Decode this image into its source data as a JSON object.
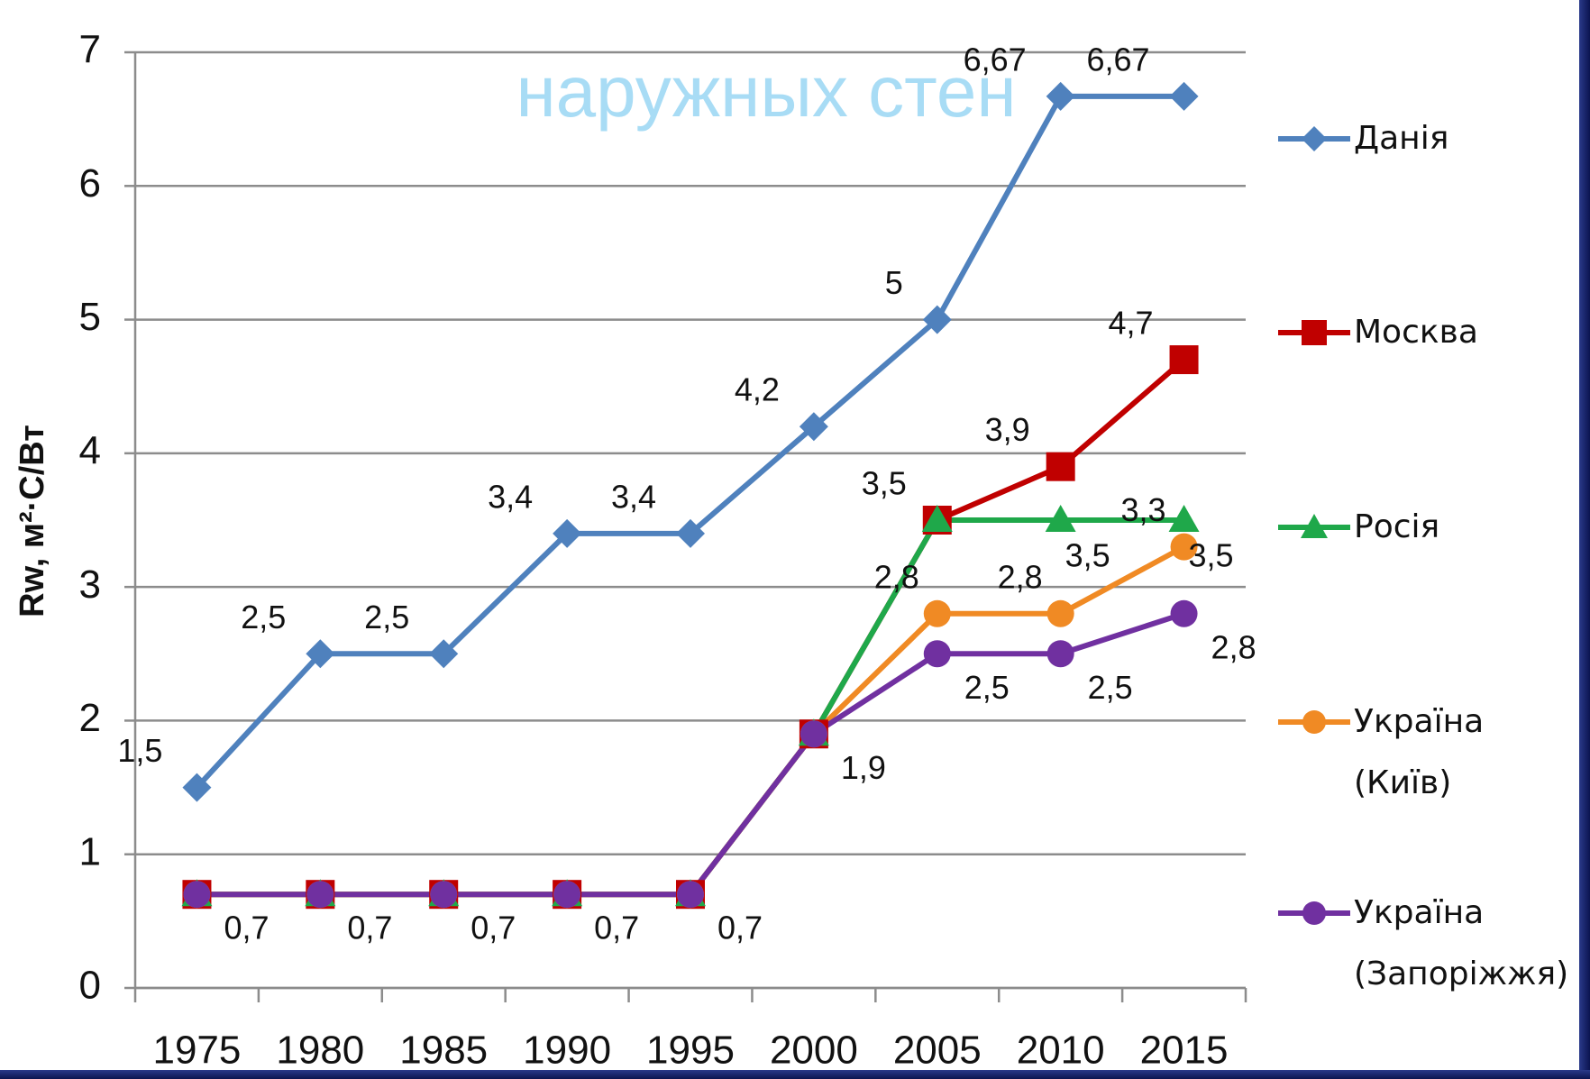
{
  "chart_data": {
    "type": "line",
    "overlay_title": "наружных стен",
    "y_label": "Rw, м²·С/Вт",
    "categories": [
      "1975",
      "1980",
      "1985",
      "1990",
      "1995",
      "2000",
      "2005",
      "2010",
      "2015"
    ],
    "ylim": [
      0,
      7
    ],
    "yticks": [
      0,
      1,
      2,
      3,
      4,
      5,
      6,
      7
    ],
    "grid": true,
    "legend": "right",
    "series": [
      {
        "name": "Данія",
        "color": "#4f81bd",
        "marker": "diamond",
        "values": [
          1.5,
          2.5,
          2.5,
          3.4,
          3.4,
          4.2,
          5,
          6.67,
          6.67
        ],
        "value_labels": [
          "1,5",
          "2,5",
          "2,5",
          "3,4",
          "3,4",
          "4,2",
          "5",
          "6,67",
          "6,67"
        ]
      },
      {
        "name": "Москва",
        "color": "#c00000",
        "marker": "square",
        "values": [
          0.7,
          0.7,
          0.7,
          0.7,
          0.7,
          1.9,
          3.5,
          3.9,
          4.7
        ],
        "value_labels": [
          null,
          null,
          null,
          null,
          null,
          null,
          "3,5",
          "3,9",
          "4,7"
        ]
      },
      {
        "name": "Росія",
        "color": "#1fa84a",
        "marker": "triangle",
        "values": [
          0.7,
          0.7,
          0.7,
          0.7,
          0.7,
          1.9,
          3.5,
          3.5,
          3.5
        ],
        "value_labels": [
          null,
          null,
          null,
          null,
          null,
          null,
          null,
          "3,5",
          "3,5"
        ]
      },
      {
        "name": "Україна (Київ)",
        "color": "#f08a24",
        "marker": "circle",
        "values": [
          0.7,
          0.7,
          0.7,
          0.7,
          0.7,
          1.9,
          2.8,
          2.8,
          3.3
        ],
        "value_labels": [
          null,
          null,
          null,
          null,
          null,
          null,
          "2,8",
          "2,8",
          "3,3"
        ]
      },
      {
        "name": "Україна (Запоріжжя)",
        "color": "#7030a0",
        "marker": "circle",
        "values": [
          0.7,
          0.7,
          0.7,
          0.7,
          0.7,
          1.9,
          2.5,
          2.5,
          2.8
        ],
        "value_labels": [
          "0,7",
          "0,7",
          "0,7",
          "0,7",
          "0,7",
          "1,9",
          "2,5",
          "2,5",
          "2,8"
        ]
      }
    ]
  }
}
